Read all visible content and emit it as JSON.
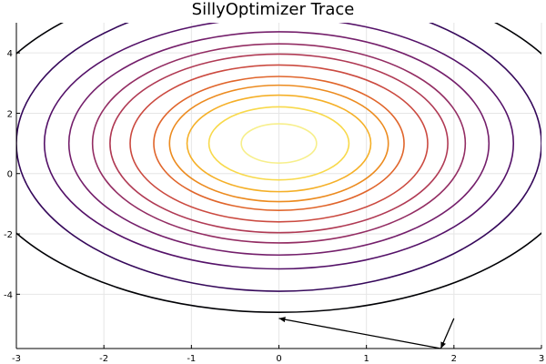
{
  "chart_data": {
    "type": "contour",
    "title": "SillyOptimizer Trace",
    "xlabel": "",
    "ylabel": "",
    "xlim": [
      -3,
      3
    ],
    "ylim": [
      -5.8,
      5
    ],
    "grid": true,
    "legend": "none",
    "xticks": [
      -3,
      -2,
      -1,
      0,
      1,
      2,
      3
    ],
    "yticks": [
      -4,
      -2,
      0,
      2,
      4
    ],
    "contour_center": [
      0,
      1
    ],
    "contour_semi_axes": [
      {
        "x": 0.43,
        "y": 0.65
      },
      {
        "x": 0.8,
        "y": 1.21
      },
      {
        "x": 1.05,
        "y": 1.6
      },
      {
        "x": 1.25,
        "y": 1.93
      },
      {
        "x": 1.43,
        "y": 2.22
      },
      {
        "x": 1.7,
        "y": 2.6
      },
      {
        "x": 1.93,
        "y": 2.96
      },
      {
        "x": 2.13,
        "y": 3.3
      },
      {
        "x": 2.4,
        "y": 3.7
      },
      {
        "x": 2.68,
        "y": 4.16
      },
      {
        "x": 3.0,
        "y": 4.9
      },
      {
        "x": 3.54,
        "y": 5.6
      }
    ],
    "contour_colors": [
      "#f7ef8c",
      "#f8d94b",
      "#f5b028",
      "#ec8b1f",
      "#e0652b",
      "#cb4a40",
      "#b03a54",
      "#932d63",
      "#741f6b",
      "#541168",
      "#35085a",
      "#000004"
    ],
    "trace": {
      "points": [
        {
          "x": 2.0,
          "y": -4.8
        },
        {
          "x": 1.85,
          "y": -5.8
        },
        {
          "x": 0.0,
          "y": -4.8
        }
      ],
      "color": "#000000"
    }
  }
}
